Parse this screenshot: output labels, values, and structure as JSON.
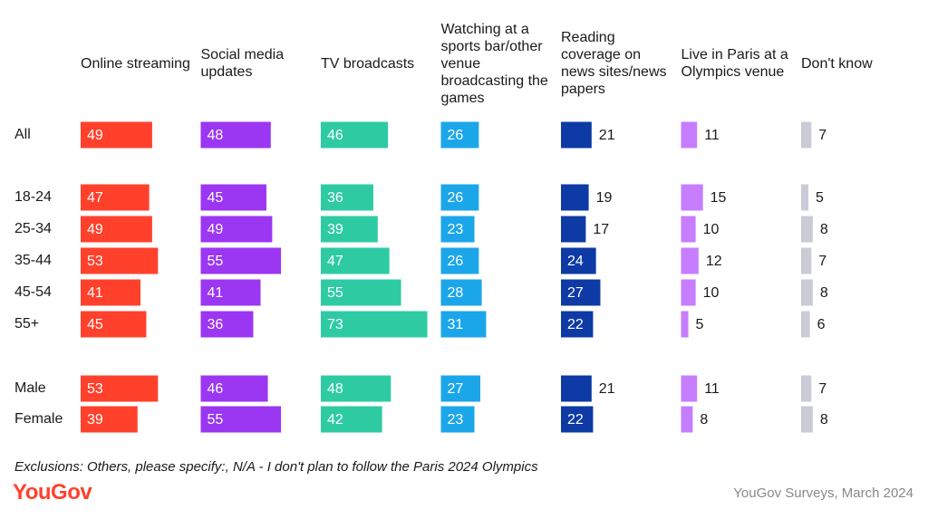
{
  "chart_data": {
    "type": "bar",
    "categories": [
      "All",
      "18-24",
      "25-34",
      "35-44",
      "45-54",
      "55+",
      "Male",
      "Female"
    ],
    "series": [
      {
        "name": "Online streaming",
        "color": "#ff412c",
        "values": [
          49,
          47,
          49,
          53,
          41,
          45,
          53,
          39
        ]
      },
      {
        "name": "Social media updates",
        "color": "#9b36f2",
        "values": [
          48,
          45,
          49,
          55,
          41,
          36,
          46,
          55
        ]
      },
      {
        "name": "TV broadcasts",
        "color": "#2ecba3",
        "values": [
          46,
          36,
          39,
          47,
          55,
          73,
          48,
          42
        ]
      },
      {
        "name": "Watching at a sports bar/other venue broadcasting the games",
        "color": "#1ba6ea",
        "values": [
          26,
          26,
          23,
          26,
          28,
          31,
          27,
          23
        ]
      },
      {
        "name": "Reading coverage on news sites/news papers",
        "color": "#0d3aa5",
        "values": [
          21,
          19,
          17,
          24,
          27,
          22,
          21,
          22
        ]
      },
      {
        "name": "Live in Paris at a Olympics venue",
        "color": "#c77dff",
        "values": [
          11,
          15,
          10,
          12,
          10,
          5,
          11,
          8
        ]
      },
      {
        "name": "Don't know",
        "color": "#c9ccd6",
        "values": [
          7,
          5,
          8,
          7,
          8,
          6,
          7,
          8
        ]
      }
    ],
    "footnote": "Exclusions: Others, please specify:, N/A - I don't plan to follow the Paris 2024 Olympics",
    "logo": "YouGov",
    "source": "YouGov Surveys, March 2024"
  }
}
